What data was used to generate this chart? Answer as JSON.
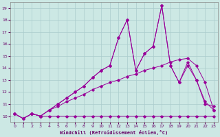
{
  "xlabel": "Windchill (Refroidissement éolien,°C)",
  "bg_color": "#cce8e4",
  "grid_color": "#aacccc",
  "line_color": "#990099",
  "xlim": [
    -0.5,
    23.5
  ],
  "ylim": [
    9.5,
    19.5
  ],
  "yticks": [
    10,
    11,
    12,
    13,
    14,
    15,
    16,
    17,
    18,
    19
  ],
  "xticks": [
    0,
    1,
    2,
    3,
    4,
    5,
    6,
    7,
    8,
    9,
    10,
    11,
    12,
    13,
    14,
    15,
    16,
    17,
    18,
    19,
    20,
    21,
    22,
    23
  ],
  "line1_x": [
    0,
    1,
    2,
    3,
    4,
    5,
    6,
    7,
    8,
    9,
    10,
    11,
    12,
    13,
    14,
    15,
    16,
    17,
    18,
    19,
    20,
    21,
    22,
    23
  ],
  "line1_y": [
    10.2,
    9.8,
    10.2,
    10.0,
    10.0,
    10.0,
    10.0,
    10.0,
    10.0,
    10.0,
    10.0,
    10.0,
    10.0,
    10.0,
    10.0,
    10.0,
    10.0,
    10.0,
    10.0,
    10.0,
    10.0,
    10.0,
    10.0,
    10.0
  ],
  "line2_x": [
    0,
    1,
    2,
    3,
    4,
    5,
    6,
    7,
    8,
    9,
    10,
    11,
    12,
    13,
    14,
    15,
    16,
    17,
    18,
    19,
    20,
    21,
    22,
    23
  ],
  "line2_y": [
    10.2,
    9.8,
    10.2,
    10.0,
    10.5,
    10.8,
    11.2,
    11.5,
    11.8,
    12.2,
    12.5,
    12.8,
    13.0,
    13.3,
    13.5,
    13.8,
    14.0,
    14.2,
    14.5,
    14.7,
    14.8,
    14.2,
    12.8,
    10.5
  ],
  "line3_x": [
    0,
    1,
    2,
    3,
    4,
    5,
    6,
    7,
    8,
    9,
    10,
    11,
    12,
    13,
    14,
    15,
    16,
    17,
    18,
    19,
    20,
    21,
    22,
    23
  ],
  "line3_y": [
    10.2,
    9.8,
    10.2,
    10.0,
    10.5,
    11.0,
    11.5,
    12.0,
    12.5,
    13.2,
    13.8,
    14.2,
    16.5,
    18.0,
    13.8,
    15.2,
    15.8,
    19.2,
    14.2,
    12.8,
    14.2,
    13.0,
    11.2,
    10.5
  ],
  "line4_x": [
    2,
    3,
    4,
    5,
    6,
    7,
    8,
    9,
    10,
    11,
    12,
    13,
    14,
    15,
    16,
    17,
    18,
    19,
    20,
    21,
    22,
    23
  ],
  "line4_y": [
    10.2,
    10.0,
    10.5,
    11.0,
    11.5,
    12.0,
    12.5,
    13.2,
    13.8,
    14.2,
    16.5,
    18.0,
    13.8,
    15.2,
    15.8,
    19.2,
    14.2,
    12.8,
    14.5,
    13.0,
    11.0,
    10.8
  ]
}
